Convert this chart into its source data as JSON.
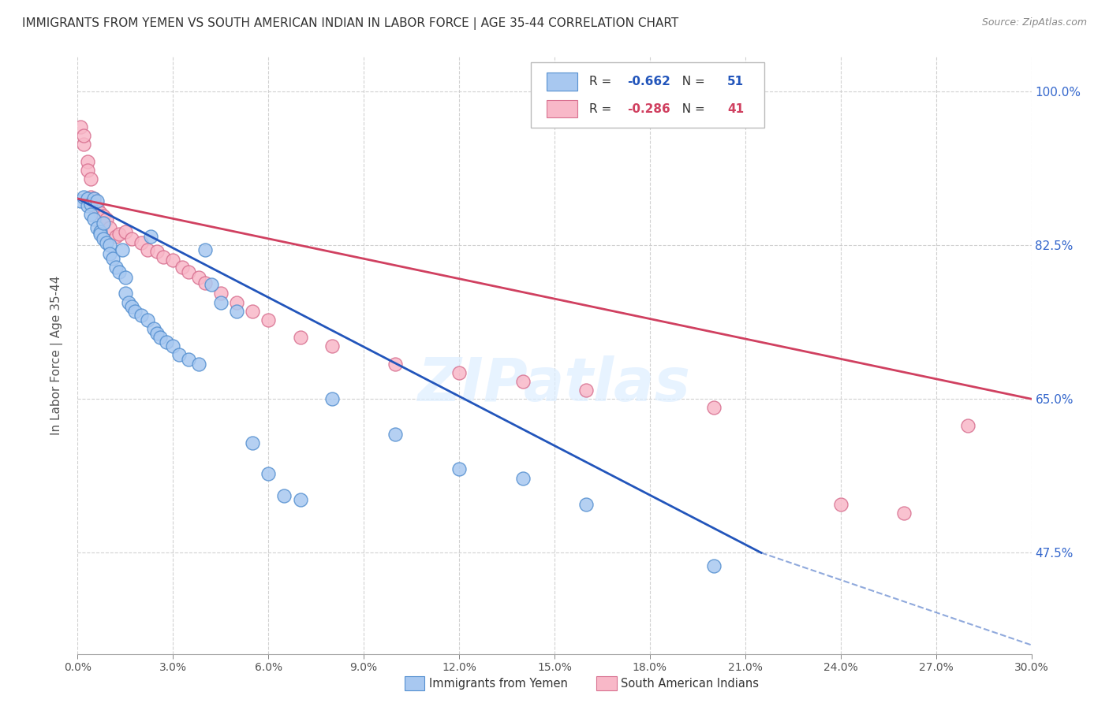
{
  "title": "IMMIGRANTS FROM YEMEN VS SOUTH AMERICAN INDIAN IN LABOR FORCE | AGE 35-44 CORRELATION CHART",
  "source": "Source: ZipAtlas.com",
  "ylabel": "In Labor Force | Age 35-44",
  "ylabel_right_ticks": [
    1.0,
    0.825,
    0.65,
    0.475
  ],
  "ylabel_right_labels": [
    "100.0%",
    "82.5%",
    "65.0%",
    "47.5%"
  ],
  "xmin": 0.0,
  "xmax": 0.3,
  "ymin": 0.36,
  "ymax": 1.04,
  "blue_R": "-0.662",
  "blue_N": "51",
  "pink_R": "-0.286",
  "pink_N": "41",
  "blue_label": "Immigrants from Yemen",
  "pink_label": "South American Indians",
  "blue_color": "#a8c8f0",
  "blue_edge": "#5590d0",
  "pink_color": "#f8b8c8",
  "pink_edge": "#d87090",
  "blue_line_color": "#2255bb",
  "pink_line_color": "#d04060",
  "watermark": "ZIPatlas",
  "blue_line": [
    0.0,
    0.878,
    0.215,
    0.475
  ],
  "blue_dash": [
    0.215,
    0.475,
    0.3,
    0.37
  ],
  "pink_line": [
    0.0,
    0.878,
    0.3,
    0.65
  ],
  "blue_scatter_x": [
    0.001,
    0.002,
    0.003,
    0.003,
    0.004,
    0.004,
    0.005,
    0.005,
    0.006,
    0.006,
    0.007,
    0.007,
    0.008,
    0.008,
    0.009,
    0.01,
    0.01,
    0.011,
    0.012,
    0.013,
    0.014,
    0.015,
    0.015,
    0.016,
    0.017,
    0.018,
    0.02,
    0.022,
    0.023,
    0.024,
    0.025,
    0.026,
    0.028,
    0.03,
    0.032,
    0.035,
    0.038,
    0.04,
    0.042,
    0.045,
    0.05,
    0.055,
    0.06,
    0.065,
    0.07,
    0.08,
    0.1,
    0.12,
    0.14,
    0.16,
    0.2
  ],
  "blue_scatter_y": [
    0.875,
    0.88,
    0.878,
    0.87,
    0.872,
    0.86,
    0.878,
    0.855,
    0.875,
    0.845,
    0.84,
    0.838,
    0.85,
    0.832,
    0.828,
    0.825,
    0.815,
    0.81,
    0.8,
    0.795,
    0.82,
    0.788,
    0.77,
    0.76,
    0.755,
    0.75,
    0.745,
    0.74,
    0.835,
    0.73,
    0.725,
    0.72,
    0.715,
    0.71,
    0.7,
    0.695,
    0.69,
    0.82,
    0.78,
    0.76,
    0.75,
    0.6,
    0.565,
    0.54,
    0.535,
    0.65,
    0.61,
    0.57,
    0.56,
    0.53,
    0.46
  ],
  "pink_scatter_x": [
    0.001,
    0.002,
    0.002,
    0.003,
    0.003,
    0.004,
    0.004,
    0.005,
    0.005,
    0.006,
    0.007,
    0.008,
    0.009,
    0.01,
    0.012,
    0.013,
    0.015,
    0.017,
    0.02,
    0.022,
    0.025,
    0.027,
    0.03,
    0.033,
    0.035,
    0.038,
    0.04,
    0.045,
    0.05,
    0.055,
    0.06,
    0.07,
    0.08,
    0.1,
    0.12,
    0.14,
    0.16,
    0.2,
    0.24,
    0.26,
    0.28
  ],
  "pink_scatter_y": [
    0.96,
    0.94,
    0.95,
    0.92,
    0.91,
    0.9,
    0.88,
    0.878,
    0.872,
    0.868,
    0.862,
    0.858,
    0.855,
    0.845,
    0.835,
    0.838,
    0.84,
    0.832,
    0.828,
    0.82,
    0.818,
    0.812,
    0.808,
    0.8,
    0.795,
    0.788,
    0.782,
    0.77,
    0.76,
    0.75,
    0.74,
    0.72,
    0.71,
    0.69,
    0.68,
    0.67,
    0.66,
    0.64,
    0.53,
    0.52,
    0.62
  ]
}
